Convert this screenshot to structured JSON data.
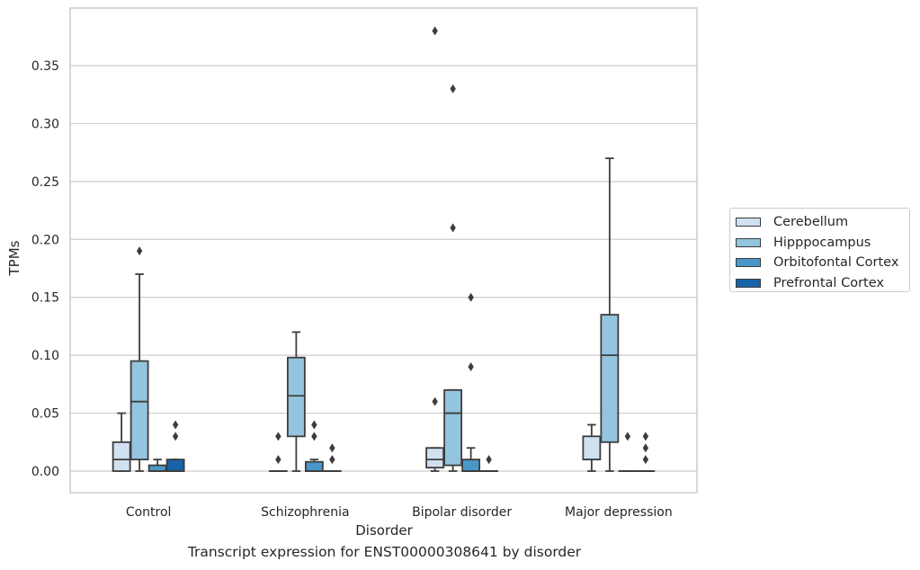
{
  "caption": "Transcript expression for ENST00000308641 by disorder",
  "colors": {
    "series": [
      "#d0e1f2",
      "#94c4df",
      "#4a98c9",
      "#1764ab"
    ],
    "box_edge": "#3d3d3d",
    "grid": "#cccccc"
  },
  "chart_data": {
    "type": "box",
    "xlabel": "Disorder",
    "ylabel": "TPMs",
    "ylim": [
      -0.018,
      0.398
    ],
    "yticks": [
      "0.00",
      "0.05",
      "0.10",
      "0.15",
      "0.20",
      "0.25",
      "0.30",
      "0.35"
    ],
    "ytick_values": [
      0,
      0.05,
      0.1,
      0.15,
      0.2,
      0.25,
      0.3,
      0.35
    ],
    "categories": [
      "Control",
      "Schizophrenia",
      "Bipolar disorder",
      "Major depression"
    ],
    "grid": "horizontal",
    "legend_position": "right",
    "series": [
      {
        "name": "Cerebellum",
        "boxes": [
          {
            "whislo": 0,
            "q1": 0,
            "med": 0.01,
            "q3": 0.025,
            "whishi": 0.05,
            "fliers": []
          },
          {
            "whislo": 0,
            "q1": 0,
            "med": 0,
            "q3": 0,
            "whishi": 0,
            "fliers": [
              0.01,
              0.03
            ]
          },
          {
            "whislo": 0,
            "q1": 0.003,
            "med": 0.01,
            "q3": 0.02,
            "whishi": 0.02,
            "fliers": [
              0.06,
              0.38
            ]
          },
          {
            "whislo": 0,
            "q1": 0.01,
            "med": 0.01,
            "q3": 0.03,
            "whishi": 0.04,
            "fliers": []
          }
        ]
      },
      {
        "name": "Hipppocampus",
        "boxes": [
          {
            "whislo": 0,
            "q1": 0.01,
            "med": 0.06,
            "q3": 0.095,
            "whishi": 0.17,
            "fliers": [
              0.19
            ]
          },
          {
            "whislo": 0,
            "q1": 0.03,
            "med": 0.065,
            "q3": 0.098,
            "whishi": 0.12,
            "fliers": []
          },
          {
            "whislo": 0,
            "q1": 0.005,
            "med": 0.05,
            "q3": 0.07,
            "whishi": 0.07,
            "fliers": [
              0.21,
              0.33
            ]
          },
          {
            "whislo": 0,
            "q1": 0.025,
            "med": 0.1,
            "q3": 0.135,
            "whishi": 0.27,
            "fliers": []
          }
        ]
      },
      {
        "name": "Orbitofontal Cortex",
        "boxes": [
          {
            "whislo": 0,
            "q1": 0,
            "med": 0,
            "q3": 0.005,
            "whishi": 0.01,
            "fliers": []
          },
          {
            "whislo": 0,
            "q1": 0,
            "med": 0,
            "q3": 0.008,
            "whishi": 0.01,
            "fliers": [
              0.03,
              0.04
            ]
          },
          {
            "whislo": 0,
            "q1": 0,
            "med": 0,
            "q3": 0.01,
            "whishi": 0.02,
            "fliers": [
              0.09,
              0.15
            ]
          },
          {
            "whislo": 0,
            "q1": 0,
            "med": 0,
            "q3": 0,
            "whishi": 0,
            "fliers": [
              0.03
            ]
          }
        ]
      },
      {
        "name": "Prefrontal Cortex",
        "boxes": [
          {
            "whislo": 0,
            "q1": 0,
            "med": 0,
            "q3": 0.01,
            "whishi": 0.01,
            "fliers": [
              0.03,
              0.04
            ]
          },
          {
            "whislo": 0,
            "q1": 0,
            "med": 0,
            "q3": 0,
            "whishi": 0,
            "fliers": [
              0.01,
              0.02
            ]
          },
          {
            "whislo": 0,
            "q1": 0,
            "med": 0,
            "q3": 0,
            "whishi": 0,
            "fliers": [
              0.01
            ]
          },
          {
            "whislo": 0,
            "q1": 0,
            "med": 0,
            "q3": 0,
            "whishi": 0,
            "fliers": [
              0.01,
              0.02,
              0.03
            ]
          }
        ]
      }
    ]
  }
}
